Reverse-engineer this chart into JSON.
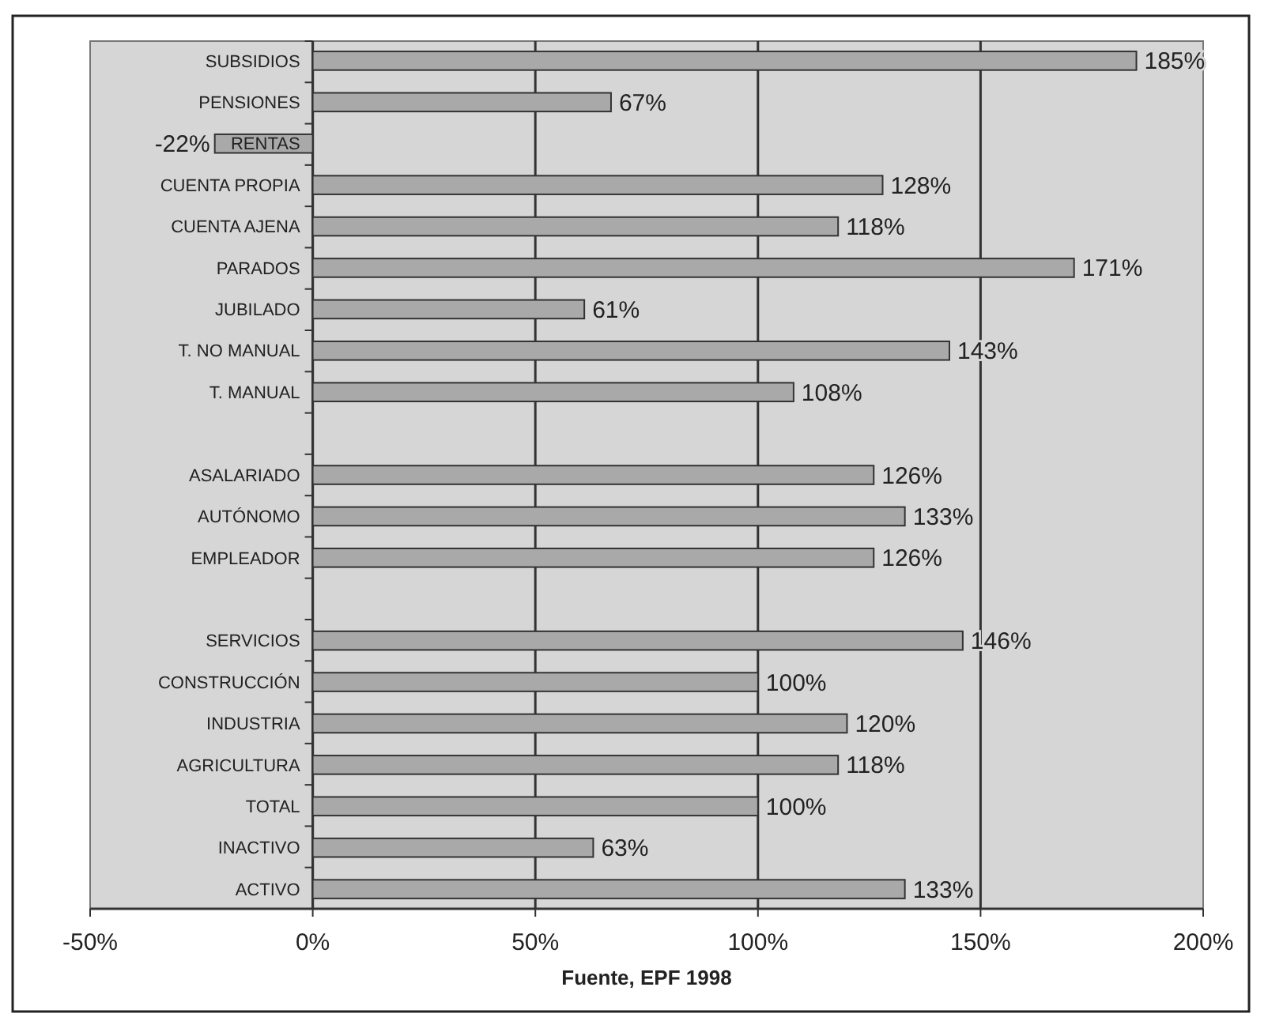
{
  "chart_data": {
    "type": "bar",
    "orientation": "horizontal",
    "xlabel": "Fuente, EPF 1998",
    "categories": [
      "SUBSIDIOS",
      "PENSIONES",
      "RENTAS",
      "CUENTA PROPIA",
      "CUENTA AJENA",
      "PARADOS",
      "JUBILADO",
      "T. NO MANUAL",
      "T. MANUAL",
      null,
      "ASALARIADO",
      "AUTÓNOMO",
      "EMPLEADOR",
      null,
      "SERVICIOS",
      "CONSTRUCCIÓN",
      "INDUSTRIA",
      "AGRICULTURA",
      "TOTAL",
      "INACTIVO",
      "ACTIVO"
    ],
    "values": [
      185,
      67,
      -22,
      128,
      118,
      171,
      61,
      143,
      108,
      null,
      126,
      133,
      126,
      null,
      146,
      100,
      120,
      118,
      100,
      63,
      133
    ],
    "value_labels": [
      "185%",
      "67%",
      "-22%",
      "128%",
      "118%",
      "171%",
      "61%",
      "143%",
      "108%",
      null,
      "126%",
      "133%",
      "126%",
      null,
      "146%",
      "100%",
      "120%",
      "118%",
      "100%",
      "63%",
      "133%"
    ],
    "color": "#a9a9a9",
    "xlim": [
      -50,
      200
    ],
    "xticks": [
      {
        "value": -50,
        "label": "-50%"
      },
      {
        "value": 0,
        "label": "0%"
      },
      {
        "value": 50,
        "label": "50%"
      },
      {
        "value": 100,
        "label": "100%"
      },
      {
        "value": 150,
        "label": "150%"
      },
      {
        "value": 200,
        "label": "200%"
      }
    ],
    "grid": "x"
  }
}
